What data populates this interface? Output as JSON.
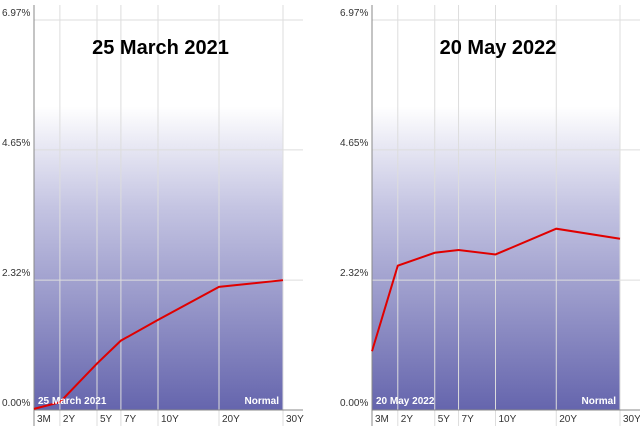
{
  "chart_data": [
    {
      "type": "line",
      "title": "25 March 2021",
      "annotation": "25 March 2021",
      "shape": "Normal",
      "categories": [
        "3M",
        "2Y",
        "5Y",
        "7Y",
        "10Y",
        "20Y",
        "30Y"
      ],
      "values": [
        0.02,
        0.14,
        0.83,
        1.24,
        1.61,
        2.2,
        2.32
      ],
      "color": "#e00000",
      "ylim": [
        0,
        6.97
      ],
      "yticks": [
        {
          "value": 0,
          "label": "0.00%"
        },
        {
          "value": 2.32,
          "label": "2.32%"
        },
        {
          "value": 4.65,
          "label": "4.65%"
        },
        {
          "value": 6.97,
          "label": "6.97%"
        }
      ],
      "grid": true
    },
    {
      "type": "line",
      "title": "20 May 2022",
      "annotation": "20 May 2022",
      "shape": "Normal",
      "categories": [
        "3M",
        "2Y",
        "5Y",
        "7Y",
        "10Y",
        "20Y",
        "30Y"
      ],
      "values": [
        1.05,
        2.58,
        2.81,
        2.86,
        2.78,
        3.24,
        3.06
      ],
      "color": "#e00000",
      "ylim": [
        0,
        6.97
      ],
      "yticks": [
        {
          "value": 0,
          "label": "0.00%"
        },
        {
          "value": 2.32,
          "label": "2.32%"
        },
        {
          "value": 4.65,
          "label": "4.65%"
        },
        {
          "value": 6.97,
          "label": "6.97%"
        }
      ],
      "grid": true
    }
  ]
}
